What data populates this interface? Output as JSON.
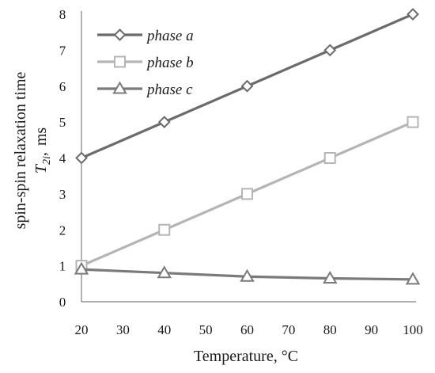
{
  "chart_data": {
    "type": "line",
    "x": [
      20,
      40,
      60,
      80,
      100
    ],
    "xlabel": "Temperature, °C",
    "ylabel_main": "spin-spin relaxation time",
    "ylabel_sub": {
      "symbol": "T",
      "subscript": "2i",
      "sep": ",",
      "unit": "ms"
    },
    "xlim": [
      20,
      100
    ],
    "ylim": [
      0,
      8
    ],
    "xticks": [
      20,
      30,
      40,
      50,
      60,
      70,
      80,
      90,
      100
    ],
    "yticks": [
      0,
      1,
      2,
      3,
      4,
      5,
      6,
      7,
      8
    ],
    "grid": false,
    "legend_position": "top-left",
    "series": [
      {
        "name": "phase a",
        "marker": "diamond",
        "color": "#6b6b6b",
        "values": [
          4,
          5,
          6,
          7,
          8
        ]
      },
      {
        "name": "phase b",
        "marker": "square",
        "color": "#b5b5b5",
        "values": [
          1,
          2,
          3,
          4,
          5
        ]
      },
      {
        "name": "phase c",
        "marker": "triangle",
        "color": "#7a7a7a",
        "values": [
          0.9,
          0.8,
          0.7,
          0.65,
          0.62
        ]
      }
    ]
  }
}
